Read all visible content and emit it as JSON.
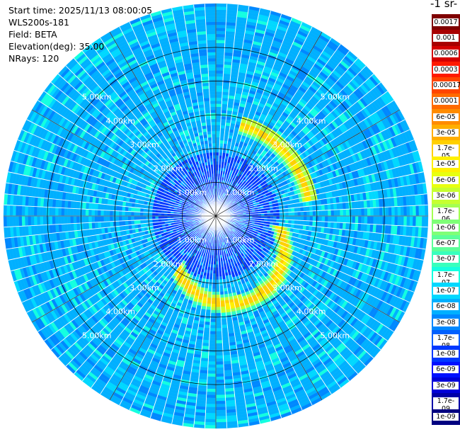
{
  "header": {
    "start_time": "Start time: 2025/11/13 08:00:05",
    "instrument": "WLS200s-181",
    "field": "Field: BETA",
    "elevation": "Elevation(deg): 35.00",
    "nrays": "NRays: 120"
  },
  "colorbar": {
    "title": "-1 sr-",
    "labels": [
      "0.0017",
      "0.001",
      "0.0006",
      "0.0003",
      "0.00017",
      "0.0001",
      "6e-05",
      "3e-05",
      "1.7e-05",
      "1e-05",
      "6e-06",
      "3e-06",
      "1.7e-06",
      "1e-06",
      "6e-07",
      "3e-07",
      "1.7e-07",
      "1e-07",
      "6e-08",
      "3e-08",
      "1.7e-08",
      "1e-08",
      "6e-09",
      "3e-09",
      "1.7e-09",
      "1e-09"
    ],
    "colors": [
      "#7f0000",
      "#a80000",
      "#d40000",
      "#ff1a00",
      "#ff4500",
      "#ff6a00",
      "#ff8c00",
      "#ffae00",
      "#ffd000",
      "#fff000",
      "#e8ff10",
      "#c6ff30",
      "#a4ff52",
      "#7fff77",
      "#5cff9a",
      "#38ffbd",
      "#14ffe0",
      "#00d8ff",
      "#00b0ff",
      "#0088ff",
      "#0060ff",
      "#0038ff",
      "#0010ff",
      "#0000d8",
      "#0000a8",
      "#000080"
    ]
  },
  "chart_data": {
    "type": "heatmap",
    "projection": "polar",
    "field": "BETA",
    "nrays": 120,
    "range_rings_km": [
      1,
      2,
      3,
      4,
      5
    ],
    "ring_labels": [
      "1.00km",
      "2.00km",
      "3.00km",
      "4.00km",
      "5.00km"
    ],
    "max_range_km": 6.3,
    "value_levels": [
      1e-09,
      1.7e-09,
      3e-09,
      6e-09,
      1e-08,
      1.7e-08,
      3e-08,
      6e-08,
      1e-07,
      1.7e-07,
      3e-07,
      6e-07,
      1e-06,
      1.7e-06,
      3e-06,
      6e-06,
      1e-05,
      1.7e-05,
      3e-05,
      6e-05,
      0.0001,
      0.00017,
      0.0003,
      0.0006,
      0.001,
      0.0017
    ],
    "background_level": 6e-08,
    "features": [
      {
        "description": "high-backscatter arc (enhanced aerosol layer)",
        "range_km": [
          2.6,
          3.0
        ],
        "azimuth_deg": [
          15,
          80
        ],
        "peak_level": 1.7e-05
      },
      {
        "description": "high-backscatter arc (enhanced aerosol layer)",
        "range_km": [
          1.8,
          2.7
        ],
        "azimuth_deg": [
          100,
          215
        ],
        "peak_level": 1.7e-05
      },
      {
        "description": "near-field low values",
        "range_km": [
          0,
          1.9
        ],
        "level": 1e-08
      }
    ],
    "grid": true
  }
}
